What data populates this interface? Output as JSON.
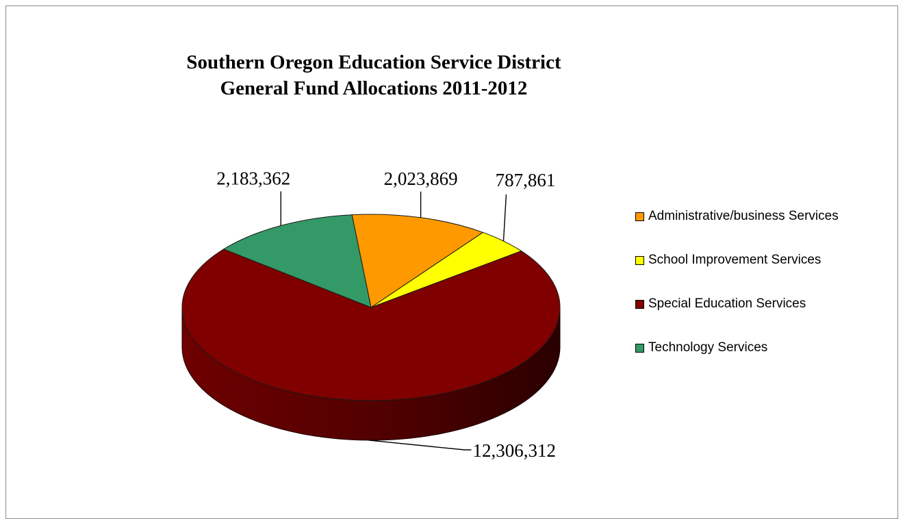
{
  "chart_data": {
    "type": "pie",
    "title": "Southern Oregon Education Service District",
    "subtitle": "General Fund Allocations 2011-2012",
    "categories": [
      "Administrative/business Services",
      "School Improvement Services",
      "Special Education Services",
      "Technology Services"
    ],
    "values": [
      2023869,
      787861,
      12306312,
      2183362
    ],
    "data_labels": [
      "2,023,869",
      "787,861",
      "12,306,312",
      "2,183,362"
    ],
    "colors": [
      "#ff9900",
      "#ffff00",
      "#800000",
      "#339966"
    ],
    "legend_position": "right",
    "style": "3d"
  }
}
